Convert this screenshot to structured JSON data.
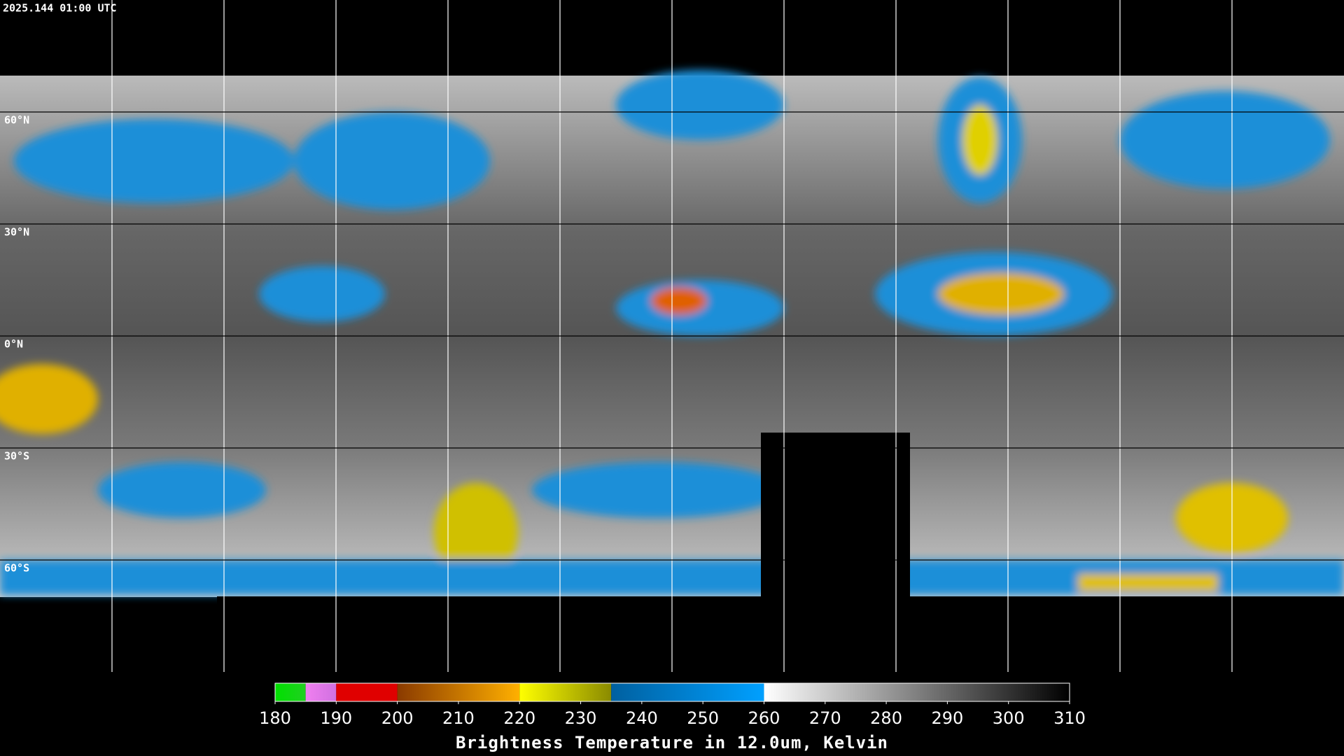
{
  "header": {
    "timestamp": "2025.144 01:00 UTC"
  },
  "map": {
    "latitude_labels": [
      "60°N",
      "30°N",
      "0°N",
      "30°S",
      "60°S"
    ]
  },
  "colorbar": {
    "title": "Brightness Temperature in 12.0um, Kelvin",
    "range": [
      180,
      310
    ],
    "ticks": [
      180,
      190,
      200,
      210,
      220,
      230,
      240,
      250,
      260,
      270,
      280,
      290,
      300,
      310
    ],
    "segments": [
      {
        "from": 180,
        "to": 185,
        "colors": [
          "#00e000",
          "#20d020"
        ]
      },
      {
        "from": 185,
        "to": 190,
        "colors": [
          "#f080f0",
          "#d070e0"
        ]
      },
      {
        "from": 190,
        "to": 200,
        "colors": [
          "#e00000",
          "#e00000"
        ]
      },
      {
        "from": 200,
        "to": 220,
        "colors": [
          "#8a3a00",
          "#ffb000"
        ]
      },
      {
        "from": 220,
        "to": 235,
        "colors": [
          "#ffff00",
          "#8a8a00"
        ]
      },
      {
        "from": 235,
        "to": 260,
        "colors": [
          "#0060a0",
          "#00a0ff"
        ]
      },
      {
        "from": 260,
        "to": 310,
        "colors": [
          "#ffffff",
          "#000000"
        ]
      }
    ]
  }
}
